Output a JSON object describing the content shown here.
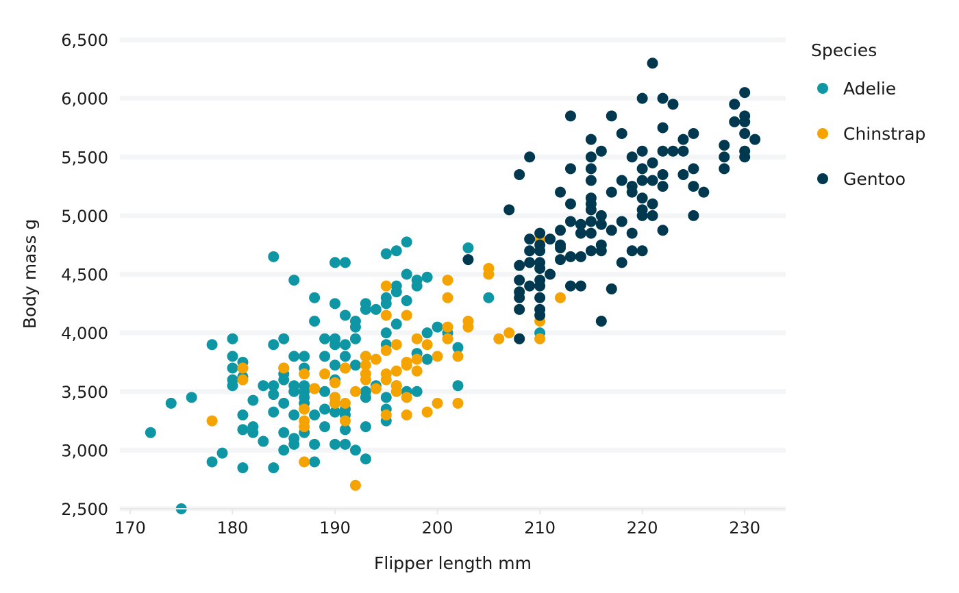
{
  "chart_data": {
    "type": "scatter",
    "title": "",
    "xlabel": "Flipper length mm",
    "ylabel": "Body mass g",
    "xlim": [
      169,
      234
    ],
    "ylim": [
      2500,
      6500
    ],
    "x_ticks": [
      "170",
      "180",
      "190",
      "200",
      "210",
      "220",
      "230"
    ],
    "y_ticks": [
      "2,500",
      "3,000",
      "3,500",
      "4,000",
      "4,500",
      "5,000",
      "5,500",
      "6,000",
      "6,500"
    ],
    "grid": "horizontal",
    "legend": {
      "title": "Species",
      "position": "right"
    },
    "series": [
      {
        "name": "Adelie",
        "color": "#0f96a4",
        "points": [
          [
            172,
            3150
          ],
          [
            174,
            3400
          ],
          [
            175,
            2500
          ],
          [
            176,
            3450
          ],
          [
            178,
            3900
          ],
          [
            178,
            2900
          ],
          [
            179,
            2975
          ],
          [
            180,
            3950
          ],
          [
            180,
            3800
          ],
          [
            180,
            3700
          ],
          [
            180,
            3600
          ],
          [
            180,
            3550
          ],
          [
            181,
            3750
          ],
          [
            181,
            3625
          ],
          [
            181,
            3300
          ],
          [
            181,
            3175
          ],
          [
            181,
            2850
          ],
          [
            182,
            3200
          ],
          [
            182,
            3150
          ],
          [
            182,
            3425
          ],
          [
            183,
            3550
          ],
          [
            183,
            3075
          ],
          [
            184,
            4650
          ],
          [
            184,
            3900
          ],
          [
            184,
            3550
          ],
          [
            184,
            3475
          ],
          [
            184,
            3325
          ],
          [
            184,
            2850
          ],
          [
            185,
            3950
          ],
          [
            185,
            3700
          ],
          [
            185,
            3650
          ],
          [
            185,
            3600
          ],
          [
            185,
            3400
          ],
          [
            185,
            3150
          ],
          [
            185,
            3000
          ],
          [
            186,
            4450
          ],
          [
            186,
            3800
          ],
          [
            186,
            3550
          ],
          [
            186,
            3500
          ],
          [
            186,
            3300
          ],
          [
            186,
            3100
          ],
          [
            186,
            3050
          ],
          [
            187,
            3800
          ],
          [
            187,
            3700
          ],
          [
            187,
            3550
          ],
          [
            187,
            3500
          ],
          [
            187,
            3450
          ],
          [
            187,
            3400
          ],
          [
            187,
            3150
          ],
          [
            188,
            4300
          ],
          [
            188,
            4100
          ],
          [
            188,
            3525
          ],
          [
            188,
            3300
          ],
          [
            188,
            3050
          ],
          [
            188,
            2900
          ],
          [
            189,
            3950
          ],
          [
            189,
            3800
          ],
          [
            189,
            3500
          ],
          [
            189,
            3350
          ],
          [
            189,
            3200
          ],
          [
            190,
            4600
          ],
          [
            190,
            4250
          ],
          [
            190,
            3950
          ],
          [
            190,
            3900
          ],
          [
            190,
            3725
          ],
          [
            190,
            3600
          ],
          [
            190,
            3450
          ],
          [
            190,
            3400
          ],
          [
            190,
            3325
          ],
          [
            190,
            3050
          ],
          [
            191,
            4600
          ],
          [
            191,
            4150
          ],
          [
            191,
            3900
          ],
          [
            191,
            3800
          ],
          [
            191,
            3700
          ],
          [
            191,
            3350
          ],
          [
            191,
            3300
          ],
          [
            191,
            3175
          ],
          [
            191,
            3050
          ],
          [
            192,
            4100
          ],
          [
            192,
            4050
          ],
          [
            192,
            3950
          ],
          [
            192,
            3725
          ],
          [
            192,
            3000
          ],
          [
            193,
            4250
          ],
          [
            193,
            4200
          ],
          [
            193,
            3800
          ],
          [
            193,
            3500
          ],
          [
            193,
            3450
          ],
          [
            193,
            3200
          ],
          [
            193,
            2925
          ],
          [
            194,
            4200
          ],
          [
            194,
            3550
          ],
          [
            195,
            4675
          ],
          [
            195,
            4300
          ],
          [
            195,
            4250
          ],
          [
            195,
            4000
          ],
          [
            195,
            3900
          ],
          [
            195,
            3450
          ],
          [
            195,
            3350
          ],
          [
            195,
            3250
          ],
          [
            196,
            4700
          ],
          [
            196,
            4400
          ],
          [
            196,
            4350
          ],
          [
            196,
            4075
          ],
          [
            196,
            3550
          ],
          [
            197,
            4775
          ],
          [
            197,
            4500
          ],
          [
            197,
            4275
          ],
          [
            197,
            3500
          ],
          [
            198,
            4450
          ],
          [
            198,
            4400
          ],
          [
            198,
            3825
          ],
          [
            198,
            3500
          ],
          [
            199,
            4475
          ],
          [
            199,
            4000
          ],
          [
            199,
            3775
          ],
          [
            200,
            4050
          ],
          [
            201,
            4000
          ],
          [
            202,
            3875
          ],
          [
            202,
            3550
          ],
          [
            203,
            4725
          ],
          [
            205,
            4300
          ],
          [
            210,
            4000
          ]
        ]
      },
      {
        "name": "Chinstrap",
        "color": "#f5a300",
        "points": [
          [
            178,
            3250
          ],
          [
            181,
            3700
          ],
          [
            181,
            3600
          ],
          [
            185,
            3700
          ],
          [
            187,
            3650
          ],
          [
            187,
            3350
          ],
          [
            187,
            3250
          ],
          [
            187,
            3200
          ],
          [
            187,
            2900
          ],
          [
            188,
            3525
          ],
          [
            189,
            3650
          ],
          [
            190,
            3575
          ],
          [
            190,
            3450
          ],
          [
            190,
            3400
          ],
          [
            191,
            3700
          ],
          [
            191,
            3400
          ],
          [
            191,
            3250
          ],
          [
            192,
            3500
          ],
          [
            192,
            2700
          ],
          [
            193,
            3800
          ],
          [
            193,
            3725
          ],
          [
            193,
            3650
          ],
          [
            193,
            3600
          ],
          [
            194,
            3775
          ],
          [
            194,
            3525
          ],
          [
            195,
            4400
          ],
          [
            195,
            4150
          ],
          [
            195,
            3850
          ],
          [
            195,
            3650
          ],
          [
            195,
            3600
          ],
          [
            195,
            3300
          ],
          [
            196,
            3900
          ],
          [
            196,
            3675
          ],
          [
            196,
            3550
          ],
          [
            196,
            3500
          ],
          [
            197,
            4150
          ],
          [
            197,
            3750
          ],
          [
            197,
            3725
          ],
          [
            197,
            3450
          ],
          [
            197,
            3300
          ],
          [
            198,
            3950
          ],
          [
            198,
            3775
          ],
          [
            198,
            3675
          ],
          [
            199,
            3900
          ],
          [
            199,
            3325
          ],
          [
            200,
            3800
          ],
          [
            200,
            3400
          ],
          [
            201,
            4450
          ],
          [
            201,
            4300
          ],
          [
            201,
            4050
          ],
          [
            201,
            3950
          ],
          [
            202,
            3800
          ],
          [
            202,
            3400
          ],
          [
            203,
            4100
          ],
          [
            203,
            4050
          ],
          [
            205,
            4550
          ],
          [
            205,
            4500
          ],
          [
            206,
            3950
          ],
          [
            207,
            4000
          ],
          [
            210,
            4800
          ],
          [
            210,
            4100
          ],
          [
            210,
            3950
          ],
          [
            212,
            4300
          ]
        ]
      },
      {
        "name": "Gentoo",
        "color": "#00394f",
        "points": [
          [
            203,
            4625
          ],
          [
            207,
            5050
          ],
          [
            208,
            5350
          ],
          [
            208,
            4575
          ],
          [
            208,
            4450
          ],
          [
            208,
            4350
          ],
          [
            208,
            4300
          ],
          [
            208,
            4200
          ],
          [
            208,
            3950
          ],
          [
            209,
            5500
          ],
          [
            209,
            4800
          ],
          [
            209,
            4700
          ],
          [
            209,
            4600
          ],
          [
            209,
            4400
          ],
          [
            210,
            4850
          ],
          [
            210,
            4750
          ],
          [
            210,
            4700
          ],
          [
            210,
            4600
          ],
          [
            210,
            4550
          ],
          [
            210,
            4450
          ],
          [
            210,
            4400
          ],
          [
            210,
            4300
          ],
          [
            210,
            4200
          ],
          [
            210,
            4150
          ],
          [
            211,
            4800
          ],
          [
            211,
            4500
          ],
          [
            212,
            5200
          ],
          [
            212,
            4875
          ],
          [
            212,
            4750
          ],
          [
            212,
            4725
          ],
          [
            212,
            4625
          ],
          [
            213,
            5850
          ],
          [
            213,
            5400
          ],
          [
            213,
            5100
          ],
          [
            213,
            4950
          ],
          [
            213,
            4650
          ],
          [
            213,
            4400
          ],
          [
            214,
            4925
          ],
          [
            214,
            4850
          ],
          [
            214,
            4650
          ],
          [
            214,
            4400
          ],
          [
            215,
            5650
          ],
          [
            215,
            5500
          ],
          [
            215,
            5400
          ],
          [
            215,
            5300
          ],
          [
            215,
            5150
          ],
          [
            215,
            5100
          ],
          [
            215,
            5050
          ],
          [
            215,
            4950
          ],
          [
            215,
            4850
          ],
          [
            215,
            4700
          ],
          [
            216,
            5550
          ],
          [
            216,
            5000
          ],
          [
            216,
            4925
          ],
          [
            216,
            4750
          ],
          [
            216,
            4700
          ],
          [
            216,
            4100
          ],
          [
            217,
            5850
          ],
          [
            217,
            5200
          ],
          [
            217,
            4875
          ],
          [
            217,
            4375
          ],
          [
            218,
            5700
          ],
          [
            218,
            5300
          ],
          [
            218,
            4950
          ],
          [
            218,
            4600
          ],
          [
            219,
            5500
          ],
          [
            219,
            5250
          ],
          [
            219,
            5200
          ],
          [
            219,
            4850
          ],
          [
            219,
            4700
          ],
          [
            220,
            6000
          ],
          [
            220,
            5550
          ],
          [
            220,
            5400
          ],
          [
            220,
            5300
          ],
          [
            220,
            5150
          ],
          [
            220,
            5050
          ],
          [
            220,
            5000
          ],
          [
            220,
            4700
          ],
          [
            221,
            6300
          ],
          [
            221,
            5450
          ],
          [
            221,
            5300
          ],
          [
            221,
            5100
          ],
          [
            221,
            5000
          ],
          [
            222,
            6000
          ],
          [
            222,
            5750
          ],
          [
            222,
            5550
          ],
          [
            222,
            5350
          ],
          [
            222,
            5250
          ],
          [
            222,
            4875
          ],
          [
            223,
            5950
          ],
          [
            223,
            5550
          ],
          [
            224,
            5650
          ],
          [
            224,
            5550
          ],
          [
            224,
            5350
          ],
          [
            225,
            5700
          ],
          [
            225,
            5400
          ],
          [
            225,
            5250
          ],
          [
            225,
            5000
          ],
          [
            226,
            5200
          ],
          [
            228,
            5600
          ],
          [
            228,
            5500
          ],
          [
            228,
            5400
          ],
          [
            229,
            5950
          ],
          [
            229,
            5800
          ],
          [
            230,
            6050
          ],
          [
            230,
            5850
          ],
          [
            230,
            5800
          ],
          [
            230,
            5700
          ],
          [
            230,
            5550
          ],
          [
            230,
            5500
          ],
          [
            231,
            5650
          ]
        ]
      }
    ]
  }
}
